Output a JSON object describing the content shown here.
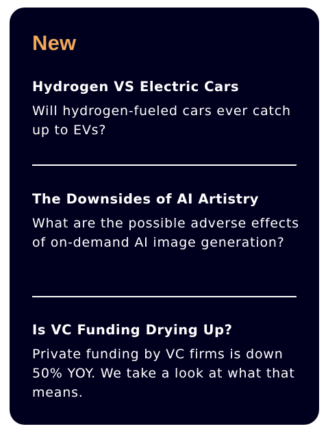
{
  "section": {
    "title": "New",
    "accent_color": "#f0a85a",
    "background_color": "#00001e"
  },
  "articles": [
    {
      "title": "Hydrogen VS Electric Cars",
      "description": "Will hydrogen-fueled cars ever catch up to EVs?"
    },
    {
      "title": "The Downsides of AI Artistry",
      "description": "What are the possible adverse effects of on-demand AI image generation?"
    },
    {
      "title": "Is VC Funding Drying Up?",
      "description": "Private funding by VC firms is down 50% YOY. We take a look at what that means."
    }
  ]
}
